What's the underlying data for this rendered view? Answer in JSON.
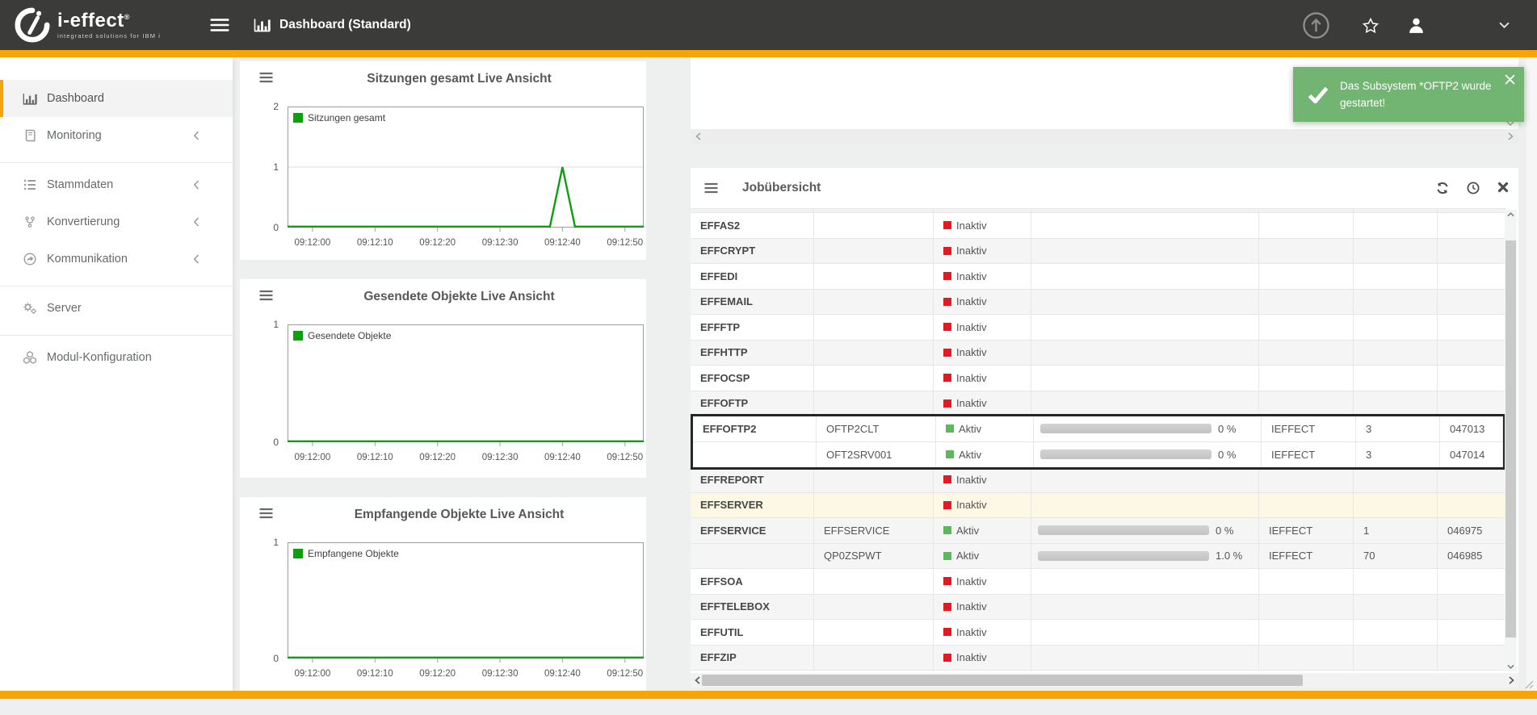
{
  "colors": {
    "accent_orange": "#f7a408",
    "navbar_bg": "#3b3b3a",
    "chart_line_green": "#0e9e0e",
    "status_active_green": "#5cb85c",
    "status_inactive_red": "#e01b24",
    "toast_green": "#72b572",
    "row_highlight_yellow": "#fcf8e3"
  },
  "navbar": {
    "brand": "i-effect",
    "brand_reg": "®",
    "tagline": "integrated solutions for IBM i",
    "title": "Dashboard (Standard)"
  },
  "sidebar": {
    "groups": [
      [
        {
          "label": "Dashboard",
          "icon": "chart-bars",
          "active": true
        },
        {
          "label": "Monitoring",
          "icon": "book",
          "chevron": true
        }
      ],
      [
        {
          "label": "Stammdaten",
          "icon": "list",
          "chevron": true
        },
        {
          "label": "Konvertierung",
          "icon": "code-fork",
          "chevron": true
        },
        {
          "label": "Kommunikation",
          "icon": "share",
          "chevron": true
        }
      ],
      [
        {
          "label": "Server",
          "icon": "gears"
        }
      ],
      [
        {
          "label": "Modul-Konfiguration",
          "icon": "cubes"
        }
      ]
    ]
  },
  "toast": {
    "message": "Das Subsystem *OFTP2 wurde gestartet!"
  },
  "chart_data": [
    {
      "type": "line",
      "title": "Sitzungen gesamt Live Ansicht",
      "legend": "Sitzungen gesamt",
      "ymax": 2,
      "yticks": [
        2,
        1,
        0
      ],
      "xticks": [
        "09:12:00",
        "09:12:10",
        "09:12:20",
        "09:12:30",
        "09:12:40",
        "09:12:50"
      ],
      "xlim": [
        "09:11:56",
        "09:12:53"
      ],
      "points": [
        [
          "09:11:56",
          0
        ],
        [
          "09:12:38",
          0
        ],
        [
          "09:12:40",
          1
        ],
        [
          "09:12:42",
          0
        ],
        [
          "09:12:53",
          0
        ]
      ]
    },
    {
      "type": "line",
      "title": "Gesendete Objekte Live Ansicht",
      "legend": "Gesendete Objekte",
      "ymax": 1,
      "yticks": [
        1,
        0
      ],
      "xticks": [
        "09:12:00",
        "09:12:10",
        "09:12:20",
        "09:12:30",
        "09:12:40",
        "09:12:50"
      ],
      "xlim": [
        "09:11:56",
        "09:12:53"
      ],
      "points": [
        [
          "09:11:56",
          0
        ],
        [
          "09:12:53",
          0
        ]
      ]
    },
    {
      "type": "line",
      "title": "Empfangende Objekte Live Ansicht",
      "legend": "Empfangene Objekte",
      "ymax": 1,
      "yticks": [
        1,
        0
      ],
      "xticks": [
        "09:12:00",
        "09:12:10",
        "09:12:20",
        "09:12:30",
        "09:12:40",
        "09:12:50"
      ],
      "xlim": [
        "09:11:56",
        "09:12:53"
      ],
      "points": [
        [
          "09:11:56",
          0
        ],
        [
          "09:12:53",
          0
        ]
      ]
    }
  ],
  "job_panel": {
    "title": "Jobübersicht",
    "rows": [
      {
        "name": "EFFAS2",
        "job": "",
        "status": "Inaktiv",
        "progress": "",
        "pct": -1,
        "user": "",
        "count": "",
        "jobnr": "",
        "group": 1
      },
      {
        "name": "EFFCRYPT",
        "job": "",
        "status": "Inaktiv",
        "progress": "",
        "pct": -1,
        "user": "",
        "count": "",
        "jobnr": "",
        "group": 2
      },
      {
        "name": "EFFEDI",
        "job": "",
        "status": "Inaktiv",
        "progress": "",
        "pct": -1,
        "user": "",
        "count": "",
        "jobnr": "",
        "group": 3
      },
      {
        "name": "EFFEMAIL",
        "job": "",
        "status": "Inaktiv",
        "progress": "",
        "pct": -1,
        "user": "",
        "count": "",
        "jobnr": "",
        "group": 4
      },
      {
        "name": "EFFFTP",
        "job": "",
        "status": "Inaktiv",
        "progress": "",
        "pct": -1,
        "user": "",
        "count": "",
        "jobnr": "",
        "group": 5
      },
      {
        "name": "EFFHTTP",
        "job": "",
        "status": "Inaktiv",
        "progress": "",
        "pct": -1,
        "user": "",
        "count": "",
        "jobnr": "",
        "group": 6
      },
      {
        "name": "EFFOCSP",
        "job": "",
        "status": "Inaktiv",
        "progress": "",
        "pct": -1,
        "user": "",
        "count": "",
        "jobnr": "",
        "group": 7
      },
      {
        "name": "EFFOFTP",
        "job": "",
        "status": "Inaktiv",
        "progress": "",
        "pct": -1,
        "user": "",
        "count": "",
        "jobnr": "",
        "group": 8
      },
      {
        "name": "EFFOFTP2",
        "job": "OFTP2CLT",
        "status": "Aktiv",
        "progress": "0 %",
        "pct": 0,
        "user": "IEFFECT",
        "count": "3",
        "jobnr": "047013",
        "group": 9,
        "box": true
      },
      {
        "name": "",
        "job": "OFT2SRV001",
        "status": "Aktiv",
        "progress": "0 %",
        "pct": 0,
        "user": "IEFFECT",
        "count": "3",
        "jobnr": "047014",
        "group": 9,
        "box": true
      },
      {
        "name": "EFFREPORT",
        "job": "",
        "status": "Inaktiv",
        "progress": "",
        "pct": -1,
        "user": "",
        "count": "",
        "jobnr": "",
        "group": 10
      },
      {
        "name": "EFFSERVER",
        "job": "",
        "status": "Inaktiv",
        "progress": "",
        "pct": -1,
        "user": "",
        "count": "",
        "jobnr": "",
        "group": 11,
        "highlight": "yellow"
      },
      {
        "name": "EFFSERVICE",
        "job": "EFFSERVICE",
        "status": "Aktiv",
        "progress": "0 %",
        "pct": 0,
        "user": "IEFFECT",
        "count": "1",
        "jobnr": "046975",
        "group": 12
      },
      {
        "name": "",
        "job": "QP0ZSPWT",
        "status": "Aktiv",
        "progress": "1.0 %",
        "pct": 1,
        "user": "IEFFECT",
        "count": "70",
        "jobnr": "046985",
        "group": 12
      },
      {
        "name": "EFFSOA",
        "job": "",
        "status": "Inaktiv",
        "progress": "",
        "pct": -1,
        "user": "",
        "count": "",
        "jobnr": "",
        "group": 13
      },
      {
        "name": "EFFTELEBOX",
        "job": "",
        "status": "Inaktiv",
        "progress": "",
        "pct": -1,
        "user": "",
        "count": "",
        "jobnr": "",
        "group": 14
      },
      {
        "name": "EFFUTIL",
        "job": "",
        "status": "Inaktiv",
        "progress": "",
        "pct": -1,
        "user": "",
        "count": "",
        "jobnr": "",
        "group": 15
      },
      {
        "name": "EFFZIP",
        "job": "",
        "status": "Inaktiv",
        "progress": "",
        "pct": -1,
        "user": "",
        "count": "",
        "jobnr": "",
        "group": 16
      }
    ]
  }
}
